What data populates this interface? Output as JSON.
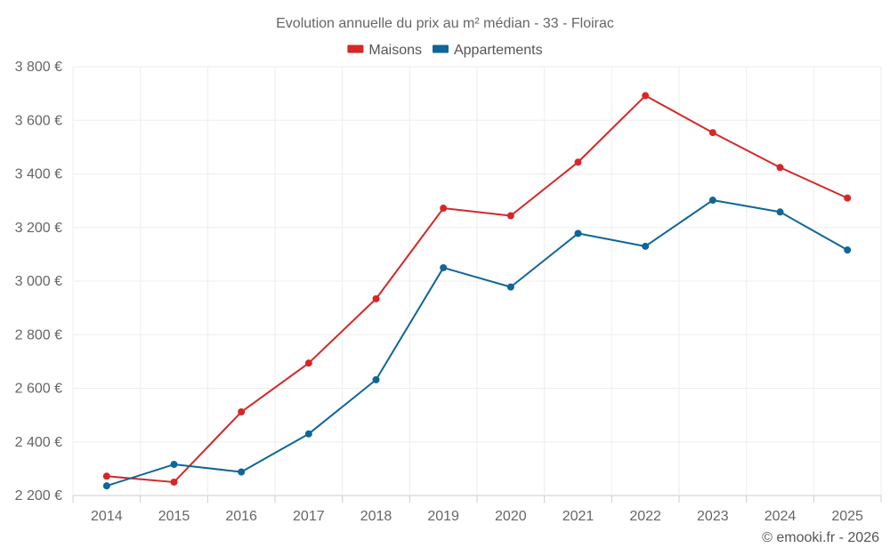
{
  "chart_data": {
    "type": "line",
    "title": "Evolution annuelle du prix au m² médian - 33 - Floirac",
    "categories": [
      "2014",
      "2015",
      "2016",
      "2017",
      "2018",
      "2019",
      "2020",
      "2021",
      "2022",
      "2023",
      "2024",
      "2025"
    ],
    "series": [
      {
        "name": "Maisons",
        "color": "#d62728",
        "values": [
          2272,
          2250,
          2512,
          2694,
          2934,
          3272,
          3244,
          3444,
          3692,
          3554,
          3424,
          3310
        ]
      },
      {
        "name": "Appartements",
        "color": "#0f6698",
        "values": [
          2236,
          2316,
          2288,
          2430,
          2632,
          3050,
          2978,
          3178,
          3130,
          3302,
          3258,
          3116
        ]
      }
    ],
    "ylim": [
      2200,
      3800
    ],
    "yticks": [
      2200,
      2400,
      2600,
      2800,
      3000,
      3200,
      3400,
      3600,
      3800
    ],
    "ytick_labels": [
      "2 200 €",
      "2 400 €",
      "2 600 €",
      "2 800 €",
      "3 000 €",
      "3 200 €",
      "3 400 €",
      "3 600 €",
      "3 800 €"
    ],
    "xlabel": "",
    "ylabel": "",
    "legend_position": "top-center",
    "grid": true
  },
  "credit": "© emooki.fr - 2026"
}
